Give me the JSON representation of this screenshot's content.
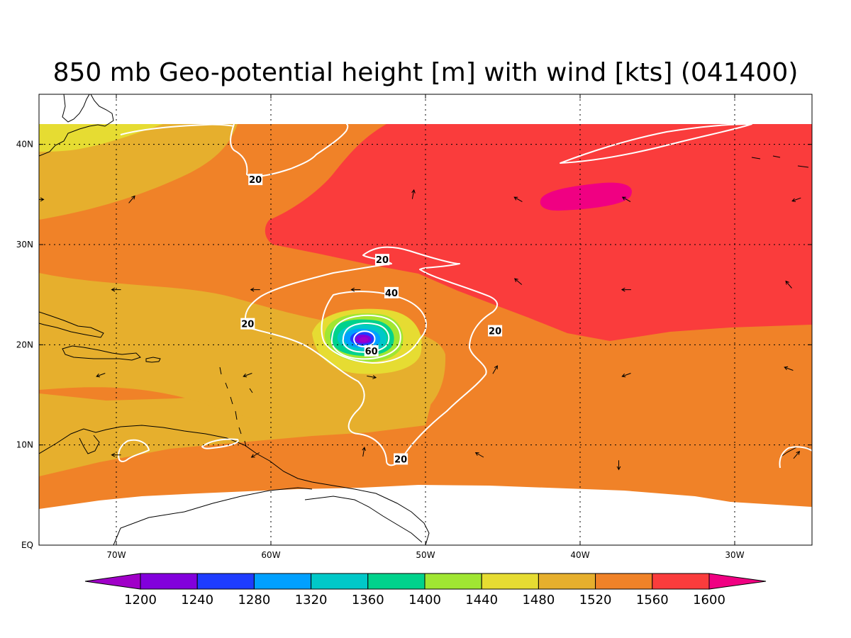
{
  "title": "850 mb Geo-potential height [m] with wind [kts] (041400)",
  "colors": {
    "h1200": "#a000c8",
    "h1240": "#8200dc",
    "h1280": "#1e3cff",
    "h1320": "#00a0ff",
    "h1360": "#00c8c8",
    "h1400": "#00d28c",
    "h1440": "#a0e632",
    "h1480": "#e6dc32",
    "h1520": "#e6af2d",
    "h1560": "#f08228",
    "h1600": "#fa3c3c",
    "above": "#f00082",
    "contour": "#ffffff",
    "coast": "#000000"
  },
  "chart_data": {
    "type": "heatmap",
    "title": "850 mb Geo-potential height [m] with wind [kts] (041400)",
    "x_axis": {
      "range_deg": [
        -75,
        -25
      ],
      "tick_values": [
        -70,
        -60,
        -50,
        -40,
        -30
      ],
      "tick_labels": [
        "70W",
        "60W",
        "50W",
        "40W",
        "30W"
      ]
    },
    "y_axis": {
      "range_deg": [
        0,
        45
      ],
      "tick_values": [
        0,
        10,
        20,
        30,
        40
      ],
      "tick_labels": [
        "EQ",
        "10N",
        "20N",
        "30N",
        "40N"
      ]
    },
    "grid": true,
    "colorbar": {
      "placement": "bottom",
      "levels": [
        1200,
        1240,
        1280,
        1320,
        1360,
        1400,
        1440,
        1480,
        1520,
        1560,
        1600
      ],
      "labels": [
        "1200",
        "1240",
        "1280",
        "1320",
        "1360",
        "1400",
        "1440",
        "1480",
        "1520",
        "1560",
        "1600"
      ]
    },
    "wind_contours": {
      "levels_kts": [
        20,
        40,
        60
      ],
      "labels": [
        {
          "text": "20",
          "lon": -61,
          "lat": 36.5
        },
        {
          "text": "20",
          "lon": -52.8,
          "lat": 28.5
        },
        {
          "text": "40",
          "lon": -52.2,
          "lat": 25.2
        },
        {
          "text": "20",
          "lon": -61.5,
          "lat": 22.1
        },
        {
          "text": "20",
          "lon": -45.5,
          "lat": 21.4
        },
        {
          "text": "60",
          "lon": -53.5,
          "lat": 19.4
        },
        {
          "text": "20",
          "lon": -51.6,
          "lat": 8.6
        }
      ]
    },
    "wind_vectors": [
      {
        "lon": -75,
        "lat": 34.5,
        "dir": 90
      },
      {
        "lon": -69,
        "lat": 34.5,
        "dir": 40
      },
      {
        "lon": -50.8,
        "lat": 35,
        "dir": 10
      },
      {
        "lon": -44,
        "lat": 34.5,
        "dir": 300
      },
      {
        "lon": -37,
        "lat": 34.5,
        "dir": 300
      },
      {
        "lon": -26,
        "lat": 34.5,
        "dir": 250
      },
      {
        "lon": -70,
        "lat": 25.5,
        "dir": 270
      },
      {
        "lon": -61,
        "lat": 25.5,
        "dir": 270
      },
      {
        "lon": -54.5,
        "lat": 25.5,
        "dir": 270
      },
      {
        "lon": -44,
        "lat": 26.3,
        "dir": 310
      },
      {
        "lon": -37,
        "lat": 25.5,
        "dir": 270
      },
      {
        "lon": -26.5,
        "lat": 26,
        "dir": 320
      },
      {
        "lon": -71,
        "lat": 17,
        "dir": 250
      },
      {
        "lon": -61.5,
        "lat": 17,
        "dir": 250
      },
      {
        "lon": -53.5,
        "lat": 16.8,
        "dir": 100
      },
      {
        "lon": -45.5,
        "lat": 17.5,
        "dir": 30
      },
      {
        "lon": -37,
        "lat": 17,
        "dir": 250
      },
      {
        "lon": -26.5,
        "lat": 17.6,
        "dir": 290
      },
      {
        "lon": -70,
        "lat": 9,
        "dir": 270
      },
      {
        "lon": -61,
        "lat": 9,
        "dir": 240
      },
      {
        "lon": -54,
        "lat": 9.3,
        "dir": 10
      },
      {
        "lon": -46.5,
        "lat": 9,
        "dir": 300
      },
      {
        "lon": -37.5,
        "lat": 8,
        "dir": 180
      },
      {
        "lon": -26,
        "lat": 9,
        "dir": 40
      }
    ]
  }
}
